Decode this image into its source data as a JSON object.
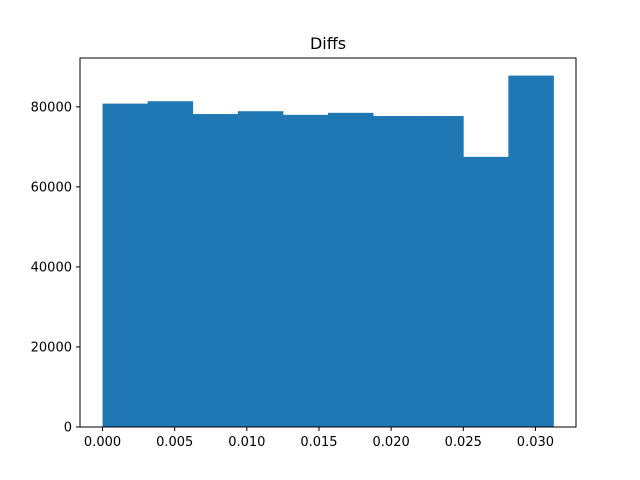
{
  "chart_data": {
    "type": "bar",
    "title": "Diffs",
    "xlabel": "",
    "ylabel": "",
    "bin_edges": [
      0.0,
      0.003125,
      0.00625,
      0.009375,
      0.0125,
      0.015625,
      0.01875,
      0.021875,
      0.025,
      0.028125,
      0.03125
    ],
    "values": [
      80800,
      81400,
      78200,
      78900,
      78000,
      78500,
      77700,
      77700,
      67500,
      87800
    ],
    "xlim": [
      -0.0015625,
      0.0328125
    ],
    "ylim": [
      0,
      92200
    ],
    "x_ticks": [
      0.0,
      0.005,
      0.01,
      0.015,
      0.02,
      0.025,
      0.03
    ],
    "x_tick_labels": [
      "0.000",
      "0.005",
      "0.010",
      "0.015",
      "0.020",
      "0.025",
      "0.030"
    ],
    "y_ticks": [
      0,
      20000,
      40000,
      60000,
      80000
    ],
    "y_tick_labels": [
      "0",
      "20000",
      "40000",
      "60000",
      "80000"
    ],
    "grid": false,
    "colors": {
      "bar": "#1f77b4",
      "axes": "#000000",
      "background": "#ffffff"
    }
  }
}
